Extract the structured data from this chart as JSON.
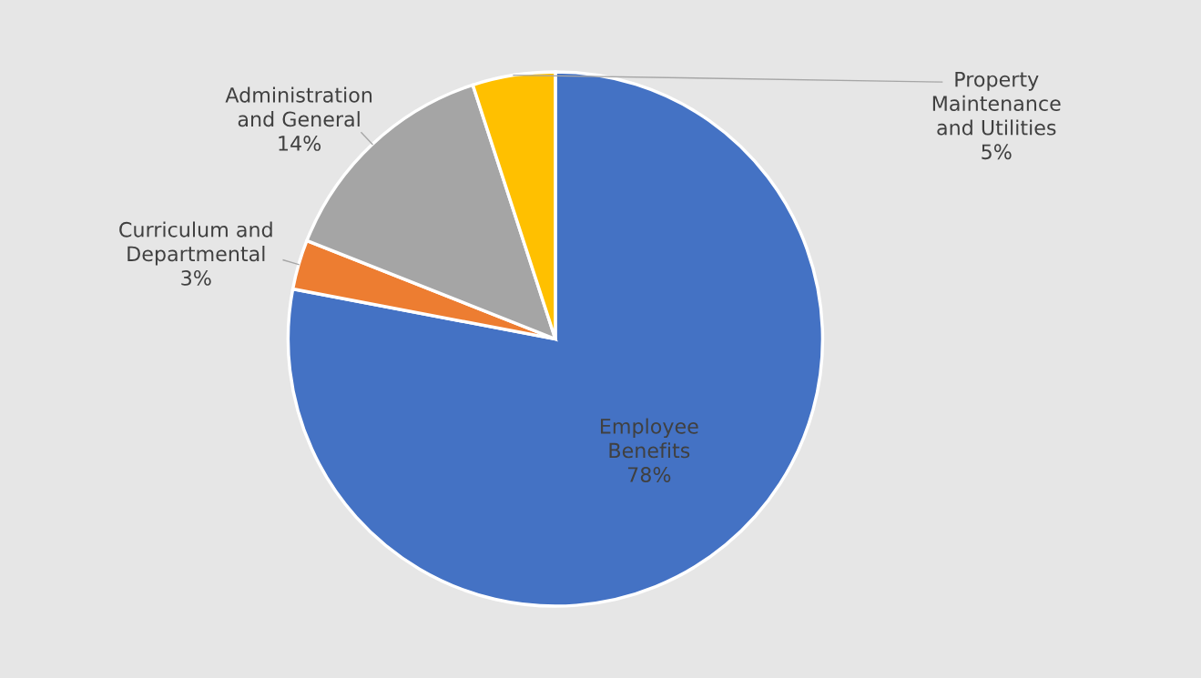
{
  "chart_data": {
    "type": "pie",
    "categories": [
      "Employee Benefits",
      "Curriculum and Departmental",
      "Administration and General",
      "Property Maintenance and Utilities"
    ],
    "values": [
      78,
      3,
      14,
      5
    ],
    "colors": [
      "#4472c4",
      "#ed7d31",
      "#a5a5a5",
      "#ffc000"
    ],
    "value_labels": [
      "78%",
      "3%",
      "14%",
      "5%"
    ],
    "legend": false
  }
}
